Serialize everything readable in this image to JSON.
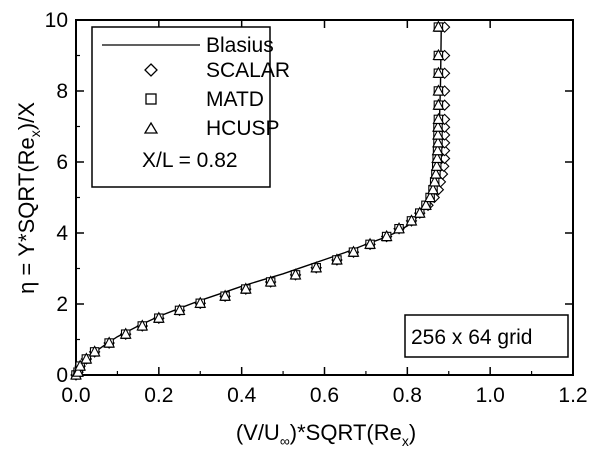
{
  "chart_data": {
    "type": "scatter",
    "xlim": [
      0.0,
      1.2
    ],
    "ylim": [
      0,
      10
    ],
    "x_ticks": [
      0.0,
      0.2,
      0.4,
      0.6,
      0.8,
      1.0,
      1.2
    ],
    "x_tick_labels": [
      "0.0",
      "0.2",
      "0.4",
      "0.6",
      "0.8",
      "1.0",
      "1.2"
    ],
    "y_ticks": [
      0,
      2,
      4,
      6,
      8,
      10
    ],
    "y_tick_labels": [
      "0",
      "2",
      "4",
      "6",
      "8",
      "10"
    ],
    "xlabel": {
      "prefix": "(V/U",
      "sub1": "∞",
      "middle": ")*SQRT(Re",
      "sub2": "x",
      "suffix": ")"
    },
    "ylabel": {
      "prefix": "η = Y*SQRT(Re",
      "sub": "x",
      "suffix": ")/X"
    },
    "grid": false,
    "legend_position": "top-left",
    "legend_note": "X/L = 0.82",
    "annotation": "256 x 64 grid",
    "line_series": {
      "name": "Blasius",
      "x": [
        0.0,
        0.01,
        0.02,
        0.04,
        0.07,
        0.1,
        0.15,
        0.2,
        0.25,
        0.3,
        0.35,
        0.4,
        0.45,
        0.5,
        0.55,
        0.6,
        0.65,
        0.7,
        0.74,
        0.77,
        0.8,
        0.82,
        0.84,
        0.855,
        0.865,
        0.87,
        0.875,
        0.878,
        0.88,
        0.881,
        0.882
      ],
      "y": [
        0.0,
        0.2,
        0.35,
        0.6,
        0.85,
        1.08,
        1.38,
        1.65,
        1.88,
        2.1,
        2.3,
        2.5,
        2.68,
        2.85,
        3.05,
        3.25,
        3.45,
        3.68,
        3.85,
        4.0,
        4.2,
        4.4,
        4.7,
        5.05,
        5.5,
        6.0,
        6.6,
        7.3,
        8.2,
        9.0,
        9.9
      ]
    },
    "marker_series": [
      {
        "name": "SCALAR",
        "marker": "diamond",
        "x": [
          0.0,
          0.005,
          0.01,
          0.025,
          0.045,
          0.08,
          0.12,
          0.16,
          0.2,
          0.25,
          0.3,
          0.36,
          0.41,
          0.47,
          0.53,
          0.58,
          0.63,
          0.67,
          0.71,
          0.75,
          0.78,
          0.81,
          0.83,
          0.85,
          0.865,
          0.875,
          0.88,
          0.885,
          0.888,
          0.89,
          0.89,
          0.89,
          0.89,
          0.89,
          0.89,
          0.89,
          0.89,
          0.89,
          0.89,
          0.89
        ],
        "y": [
          0.0,
          0.08,
          0.25,
          0.45,
          0.65,
          0.9,
          1.15,
          1.38,
          1.6,
          1.82,
          2.02,
          2.22,
          2.42,
          2.62,
          2.82,
          3.02,
          3.24,
          3.46,
          3.68,
          3.9,
          4.12,
          4.34,
          4.56,
          4.78,
          5.0,
          5.22,
          5.44,
          5.66,
          5.88,
          6.1,
          6.32,
          6.54,
          6.76,
          6.98,
          7.2,
          7.6,
          8.0,
          8.5,
          9.0,
          9.8
        ]
      },
      {
        "name": "MATD",
        "marker": "square",
        "x": [
          0.0,
          0.005,
          0.01,
          0.025,
          0.045,
          0.08,
          0.12,
          0.16,
          0.2,
          0.25,
          0.3,
          0.36,
          0.41,
          0.47,
          0.53,
          0.58,
          0.63,
          0.67,
          0.71,
          0.75,
          0.78,
          0.81,
          0.83,
          0.845,
          0.855,
          0.862,
          0.866,
          0.869,
          0.871,
          0.872,
          0.873,
          0.874,
          0.874,
          0.874,
          0.875,
          0.875,
          0.875,
          0.875,
          0.875,
          0.875
        ],
        "y": [
          0.0,
          0.08,
          0.25,
          0.45,
          0.65,
          0.9,
          1.15,
          1.38,
          1.6,
          1.82,
          2.02,
          2.22,
          2.42,
          2.62,
          2.82,
          3.02,
          3.24,
          3.46,
          3.68,
          3.9,
          4.12,
          4.34,
          4.56,
          4.78,
          5.0,
          5.22,
          5.44,
          5.66,
          5.88,
          6.1,
          6.32,
          6.54,
          6.76,
          6.98,
          7.2,
          7.6,
          8.0,
          8.5,
          9.0,
          9.8
        ]
      },
      {
        "name": "HCUSP",
        "marker": "triangle",
        "x": [
          0.0,
          0.005,
          0.01,
          0.025,
          0.045,
          0.08,
          0.12,
          0.16,
          0.2,
          0.25,
          0.3,
          0.36,
          0.41,
          0.47,
          0.53,
          0.58,
          0.63,
          0.67,
          0.71,
          0.75,
          0.78,
          0.81,
          0.83,
          0.845,
          0.855,
          0.862,
          0.866,
          0.869,
          0.871,
          0.872,
          0.873,
          0.874,
          0.874,
          0.874,
          0.875,
          0.875,
          0.875,
          0.875,
          0.875,
          0.875
        ],
        "y": [
          0.0,
          0.08,
          0.25,
          0.45,
          0.65,
          0.9,
          1.15,
          1.38,
          1.6,
          1.82,
          2.02,
          2.22,
          2.42,
          2.62,
          2.82,
          3.02,
          3.24,
          3.46,
          3.68,
          3.9,
          4.12,
          4.34,
          4.56,
          4.78,
          5.0,
          5.22,
          5.44,
          5.66,
          5.88,
          6.1,
          6.32,
          6.54,
          6.76,
          6.98,
          7.2,
          7.6,
          8.0,
          8.5,
          9.0,
          9.8
        ]
      }
    ]
  }
}
